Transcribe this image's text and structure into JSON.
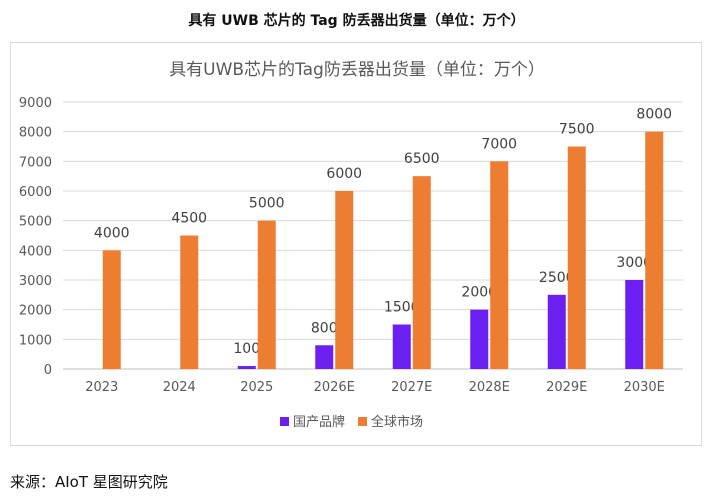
{
  "outer_title": "具有 UWB 芯片的 Tag 防丢器出货量（单位：万个）",
  "source": "来源：AIoT 星图研究院",
  "chart_data": {
    "type": "bar",
    "title": "具有UWB芯片的Tag防丢器出货量（单位：万个）",
    "categories": [
      "2023",
      "2024",
      "2025",
      "2026E",
      "2027E",
      "2028E",
      "2029E",
      "2030E"
    ],
    "series": [
      {
        "name": "国产品牌",
        "color": "#6b1ff0",
        "values": [
          null,
          null,
          100,
          800,
          1500,
          2000,
          2500,
          3000
        ]
      },
      {
        "name": "全球市场",
        "color": "#ed7d31",
        "values": [
          4000,
          4500,
          5000,
          6000,
          6500,
          7000,
          7500,
          8000
        ]
      }
    ],
    "ylim": [
      0,
      9000
    ],
    "yticks": [
      0,
      1000,
      2000,
      3000,
      4000,
      5000,
      6000,
      7000,
      8000,
      9000
    ],
    "grid": true,
    "legend": "bottom"
  }
}
